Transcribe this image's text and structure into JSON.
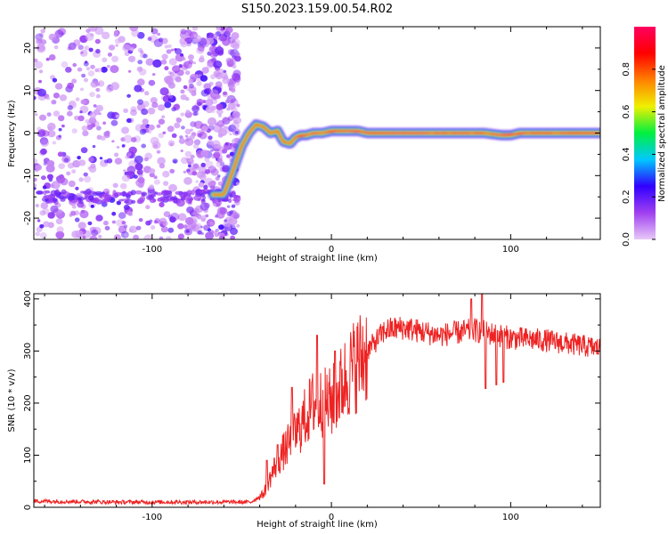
{
  "title": "S150.2023.159.00.54.R02",
  "chart_data": [
    {
      "type": "heatmap",
      "name": "spectrogram",
      "xlabel": "Height of straight line (km)",
      "ylabel": "Frequency (Hz)",
      "xlim": [
        -166,
        150
      ],
      "ylim": [
        -25,
        25
      ],
      "xticks": [
        -100,
        0,
        100
      ],
      "yticks": [
        -20,
        -10,
        0,
        10,
        20
      ],
      "ridge": {
        "x": [
          -66,
          -60,
          -55,
          -50,
          -46,
          -42,
          -38,
          -34,
          -30,
          -27,
          -23,
          -20,
          -17,
          -14,
          -10,
          -5,
          0,
          10,
          15,
          20,
          40,
          60,
          80,
          85,
          95,
          100,
          105,
          110,
          130,
          150
        ],
        "freq": [
          -14.5,
          -14.5,
          -9,
          -3,
          0,
          2,
          1.5,
          0,
          0.5,
          -2,
          -2.5,
          -1,
          -0.5,
          -0.5,
          0,
          0,
          0.5,
          0.5,
          0.5,
          0,
          0,
          0,
          0,
          0,
          -0.5,
          -0.5,
          0,
          0,
          0,
          0
        ]
      },
      "noise_region_x": [
        -166,
        -52
      ],
      "colorbar": {
        "label": "Normalized spectral amplitude",
        "range": [
          0,
          1
        ],
        "ticks": [
          0.0,
          0.2,
          0.4,
          0.6,
          0.8
        ],
        "tick_labels": [
          "0.0",
          "0.2",
          "0.4",
          "0.6",
          "0.8"
        ],
        "colormap": [
          "#e8c8f8",
          "#a040f0",
          "#3000ff",
          "#00c8ff",
          "#00f040",
          "#f0f000",
          "#ff8000",
          "#ff0000",
          "#ff0060"
        ]
      }
    },
    {
      "type": "line",
      "name": "snr",
      "xlabel": "Height of straight line (km)",
      "ylabel": "SNR (10 * v/v)",
      "xlim": [
        -166,
        150
      ],
      "ylim": [
        0,
        410
      ],
      "xticks": [
        -100,
        0,
        100
      ],
      "yticks": [
        0,
        100,
        200,
        300,
        400
      ],
      "color": "#ee2222",
      "anchors": {
        "x": [
          -166,
          -120,
          -80,
          -45,
          -38,
          -30,
          -20,
          -10,
          0,
          10,
          20,
          30,
          40,
          60,
          80,
          100,
          120,
          150
        ],
        "y": [
          12,
          10,
          10,
          10,
          25,
          90,
          140,
          200,
          200,
          260,
          300,
          340,
          345,
          330,
          340,
          325,
          320,
          305
        ]
      },
      "spikes": [
        {
          "x": -36,
          "y": 90
        },
        {
          "x": -30,
          "y": 120
        },
        {
          "x": -22,
          "y": 230
        },
        {
          "x": -8,
          "y": 330
        },
        {
          "x": -4,
          "y": 45
        },
        {
          "x": 2,
          "y": 300
        },
        {
          "x": 78,
          "y": 400
        },
        {
          "x": 84,
          "y": 410
        },
        {
          "x": 86,
          "y": 228
        },
        {
          "x": 92,
          "y": 235
        },
        {
          "x": 96,
          "y": 240
        }
      ]
    }
  ]
}
